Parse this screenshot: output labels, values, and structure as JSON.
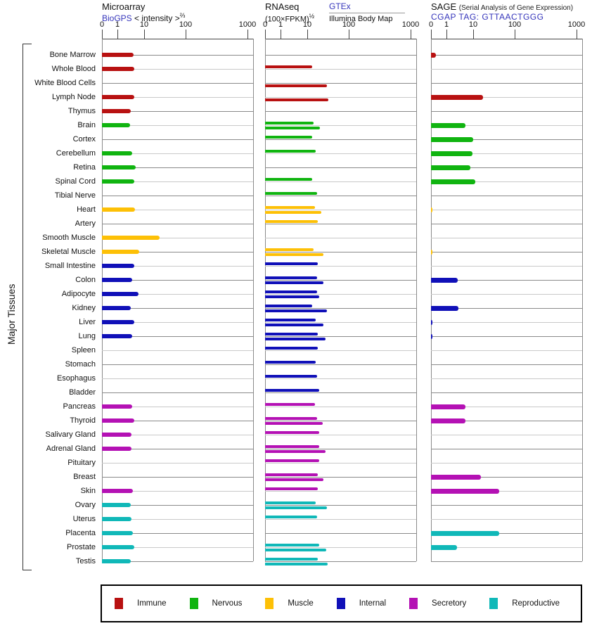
{
  "header": {
    "microarray": {
      "title": "Microarray",
      "link_label": "BioGPS",
      "scale_label": "< intensity >",
      "scale_exponent": "⅔"
    },
    "rnaseq": {
      "title": "RNAseq",
      "scale_label": "(100×FPKM)",
      "scale_exponent": "½",
      "source_top": "GTEx",
      "source_bottom": "Illumina Body Map"
    },
    "sage": {
      "title": "SAGE",
      "title_note": "(Serial Analysis of Gene Expression)",
      "tag_label": "CGAP TAG: GTTAACTGGG"
    }
  },
  "side_label": "Major Tissues",
  "legend": {
    "items": [
      {
        "label": "Immune",
        "color": "#b81111"
      },
      {
        "label": "Nervous",
        "color": "#10b410"
      },
      {
        "label": "Muscle",
        "color": "#fdc006"
      },
      {
        "label": "Internal",
        "color": "#1010b8"
      },
      {
        "label": "Secretory",
        "color": "#b411b4"
      },
      {
        "label": "Reproductive",
        "color": "#10b8b8"
      }
    ]
  },
  "chart_data": {
    "type": "bar",
    "orientation": "horizontal",
    "title": "Gene expression in major tissues (Microarray / RNAseq / SAGE)",
    "axis_ticks": [
      "0",
      "1",
      "10",
      "100",
      "1000"
    ],
    "axis_scale": "compressed log-like scale 0,1,10,100,1000",
    "panels": [
      {
        "id": "microarray",
        "label": "Microarray (BioGPS, < intensity >⅔)",
        "series": [
          "microarray"
        ]
      },
      {
        "id": "rnaseq",
        "label": "RNAseq (100×FPKM)½",
        "series": [
          "gtex",
          "illumina"
        ],
        "series_labels": [
          "GTEx",
          "Illumina Body Map"
        ]
      },
      {
        "id": "sage",
        "label": "SAGE CGAP TAG: GTTAACTGGG",
        "series": [
          "sage"
        ]
      }
    ],
    "tissues": [
      {
        "name": "Bone Marrow",
        "group": "Immune",
        "microarray": 4.0,
        "gtex": null,
        "illumina": null,
        "sage": 0.3
      },
      {
        "name": "Whole Blood",
        "group": "Immune",
        "microarray": 4.4,
        "gtex": 13,
        "illumina": null,
        "sage": null
      },
      {
        "name": "White Blood Cells",
        "group": "Immune",
        "microarray": null,
        "gtex": null,
        "illumina": 30,
        "sage": null
      },
      {
        "name": "Lymph Node",
        "group": "Immune",
        "microarray": 4.4,
        "gtex": null,
        "illumina": 32,
        "sage": 17
      },
      {
        "name": "Thymus",
        "group": "Immune",
        "microarray": 3.2,
        "gtex": null,
        "illumina": null,
        "sage": null
      },
      {
        "name": "Brain",
        "group": "Nervous",
        "microarray": 3.0,
        "gtex": 14,
        "illumina": 20,
        "sage": 5
      },
      {
        "name": "Cortex",
        "group": "Nervous",
        "microarray": null,
        "gtex": 13,
        "illumina": null,
        "sage": 10
      },
      {
        "name": "Cerebellum",
        "group": "Nervous",
        "microarray": 3.5,
        "gtex": 16,
        "illumina": null,
        "sage": 9.5
      },
      {
        "name": "Retina",
        "group": "Nervous",
        "microarray": 4.8,
        "gtex": null,
        "illumina": null,
        "sage": 8
      },
      {
        "name": "Spinal Cord",
        "group": "Nervous",
        "microarray": 4.2,
        "gtex": 13,
        "illumina": null,
        "sage": 11
      },
      {
        "name": "Tibial Nerve",
        "group": "Nervous",
        "microarray": null,
        "gtex": 17,
        "illumina": null,
        "sage": null
      },
      {
        "name": "Heart",
        "group": "Muscle",
        "microarray": 4.5,
        "gtex": 15,
        "illumina": 22,
        "sage": 0.1
      },
      {
        "name": "Artery",
        "group": "Muscle",
        "microarray": null,
        "gtex": 18,
        "illumina": null,
        "sage": null
      },
      {
        "name": "Smooth Muscle",
        "group": "Muscle",
        "microarray": 23,
        "gtex": null,
        "illumina": null,
        "sage": null
      },
      {
        "name": "Skeletal Muscle",
        "group": "Muscle",
        "microarray": 6.5,
        "gtex": 14,
        "illumina": 24,
        "sage": 0.1
      },
      {
        "name": "Small Intestine",
        "group": "Internal",
        "microarray": 4.2,
        "gtex": 18,
        "illumina": null,
        "sage": null
      },
      {
        "name": "Colon",
        "group": "Internal",
        "microarray": 3.6,
        "gtex": 17,
        "illumina": 24,
        "sage": 2.6
      },
      {
        "name": "Adipocyte",
        "group": "Internal",
        "microarray": 6.0,
        "gtex": 17,
        "illumina": 19,
        "sage": null
      },
      {
        "name": "Kidney",
        "group": "Internal",
        "microarray": 3.1,
        "gtex": 13,
        "illumina": 29,
        "sage": 2.8
      },
      {
        "name": "Liver",
        "group": "Internal",
        "microarray": 4.2,
        "gtex": 16,
        "illumina": 24,
        "sage": 0.1
      },
      {
        "name": "Lung",
        "group": "Internal",
        "microarray": 3.6,
        "gtex": 18,
        "illumina": 27,
        "sage": 0.1
      },
      {
        "name": "Spleen",
        "group": "Internal",
        "microarray": null,
        "gtex": 18,
        "illumina": null,
        "sage": null
      },
      {
        "name": "Stomach",
        "group": "Internal",
        "microarray": null,
        "gtex": 16,
        "illumina": null,
        "sage": null
      },
      {
        "name": "Esophagus",
        "group": "Internal",
        "microarray": null,
        "gtex": 17,
        "illumina": null,
        "sage": null
      },
      {
        "name": "Bladder",
        "group": "Internal",
        "microarray": null,
        "gtex": 19,
        "illumina": null,
        "sage": null
      },
      {
        "name": "Pancreas",
        "group": "Secretory",
        "microarray": 3.6,
        "gtex": 15,
        "illumina": null,
        "sage": 5
      },
      {
        "name": "Thyroid",
        "group": "Secretory",
        "microarray": 4.4,
        "gtex": 17,
        "illumina": 23,
        "sage": 5.2
      },
      {
        "name": "Salivary Gland",
        "group": "Secretory",
        "microarray": 3.4,
        "gtex": 19,
        "illumina": null,
        "sage": null
      },
      {
        "name": "Adrenal Gland",
        "group": "Secretory",
        "microarray": 3.4,
        "gtex": 19,
        "illumina": 27,
        "sage": null
      },
      {
        "name": "Pituitary",
        "group": "Secretory",
        "microarray": null,
        "gtex": 19,
        "illumina": null,
        "sage": null
      },
      {
        "name": "Breast",
        "group": "Secretory",
        "microarray": null,
        "gtex": 18,
        "illumina": 24,
        "sage": 15
      },
      {
        "name": "Skin",
        "group": "Secretory",
        "microarray": 3.9,
        "gtex": 18,
        "illumina": null,
        "sage": 42
      },
      {
        "name": "Ovary",
        "group": "Reproductive",
        "microarray": 3.1,
        "gtex": 16,
        "illumina": 30,
        "sage": null
      },
      {
        "name": "Uterus",
        "group": "Reproductive",
        "microarray": 3.4,
        "gtex": 17,
        "illumina": null,
        "sage": null
      },
      {
        "name": "Placenta",
        "group": "Reproductive",
        "microarray": 3.9,
        "gtex": null,
        "illumina": null,
        "sage": 42
      },
      {
        "name": "Prostate",
        "group": "Reproductive",
        "microarray": 4.2,
        "gtex": 19,
        "illumina": 28,
        "sage": 2.5
      },
      {
        "name": "Testis",
        "group": "Reproductive",
        "microarray": 3.1,
        "gtex": 18,
        "illumina": 31,
        "sage": null
      }
    ]
  }
}
